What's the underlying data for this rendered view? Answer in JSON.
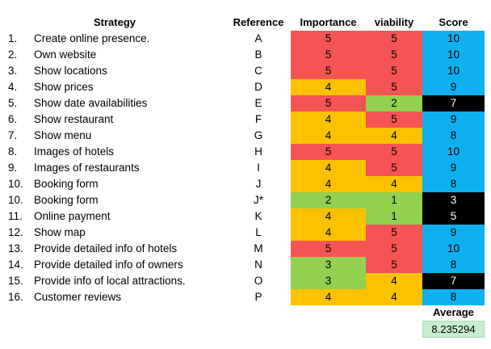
{
  "headers": {
    "strategy": "Strategy",
    "reference": "Reference",
    "importance": "Importance",
    "viability": "viability",
    "score": "Score"
  },
  "colors": {
    "red": "#f55454",
    "yellow": "#fcc200",
    "green": "#92d050",
    "blue": "#0fb0ef",
    "black": "#000000",
    "average_fill": "#c6efce"
  },
  "rows": [
    {
      "num": "1.",
      "strategy": "Create online presence.",
      "ref": "A",
      "importance": "5",
      "importance_color": "red",
      "viability": "5",
      "viability_color": "red",
      "score": "10",
      "score_color": "blue"
    },
    {
      "num": "2.",
      "strategy": "Own website",
      "ref": "B",
      "importance": "5",
      "importance_color": "red",
      "viability": "5",
      "viability_color": "red",
      "score": "10",
      "score_color": "blue"
    },
    {
      "num": "3.",
      "strategy": "Show locations",
      "ref": "C",
      "importance": "5",
      "importance_color": "red",
      "viability": "5",
      "viability_color": "red",
      "score": "10",
      "score_color": "blue"
    },
    {
      "num": "4.",
      "strategy": "Show prices",
      "ref": "D",
      "importance": "4",
      "importance_color": "yellow",
      "viability": "5",
      "viability_color": "red",
      "score": "9",
      "score_color": "blue"
    },
    {
      "num": "5.",
      "strategy": "Show date availabilities",
      "ref": "E",
      "importance": "5",
      "importance_color": "red",
      "viability": "2",
      "viability_color": "green",
      "score": "7",
      "score_color": "black"
    },
    {
      "num": "6.",
      "strategy": "Show restaurant",
      "ref": "F",
      "importance": "4",
      "importance_color": "yellow",
      "viability": "5",
      "viability_color": "red",
      "score": "9",
      "score_color": "blue"
    },
    {
      "num": "7.",
      "strategy": "Show menu",
      "ref": "G",
      "importance": "4",
      "importance_color": "yellow",
      "viability": "4",
      "viability_color": "yellow",
      "score": "8",
      "score_color": "blue"
    },
    {
      "num": "8.",
      "strategy": "Images of hotels",
      "ref": "H",
      "importance": "5",
      "importance_color": "red",
      "viability": "5",
      "viability_color": "red",
      "score": "10",
      "score_color": "blue"
    },
    {
      "num": "9.",
      "strategy": "Images of restaurants",
      "ref": "I",
      "importance": "4",
      "importance_color": "yellow",
      "viability": "5",
      "viability_color": "red",
      "score": "9",
      "score_color": "blue"
    },
    {
      "num": "10.",
      "strategy": "Booking form",
      "ref": "J",
      "importance": "4",
      "importance_color": "yellow",
      "viability": "4",
      "viability_color": "yellow",
      "score": "8",
      "score_color": "blue"
    },
    {
      "num": "10.",
      "strategy": "Booking form",
      "ref": "J*",
      "importance": "2",
      "importance_color": "green",
      "viability": "1",
      "viability_color": "green",
      "score": "3",
      "score_color": "black"
    },
    {
      "num": "11.",
      "strategy": "Online payment",
      "ref": "K",
      "importance": "4",
      "importance_color": "yellow",
      "viability": "1",
      "viability_color": "green",
      "score": "5",
      "score_color": "black"
    },
    {
      "num": "12.",
      "strategy": "Show map",
      "ref": "L",
      "importance": "4",
      "importance_color": "yellow",
      "viability": "5",
      "viability_color": "red",
      "score": "9",
      "score_color": "blue"
    },
    {
      "num": "13.",
      "strategy": "Provide detailed info of hotels",
      "ref": "M",
      "importance": "5",
      "importance_color": "red",
      "viability": "5",
      "viability_color": "red",
      "score": "10",
      "score_color": "blue"
    },
    {
      "num": "14.",
      "strategy": "Provide detailed info of owners",
      "ref": "N",
      "importance": "3",
      "importance_color": "green",
      "viability": "5",
      "viability_color": "red",
      "score": "8",
      "score_color": "blue"
    },
    {
      "num": "15.",
      "strategy": "Provide info of local attractions.",
      "ref": "O",
      "importance": "3",
      "importance_color": "green",
      "viability": "4",
      "viability_color": "yellow",
      "score": "7",
      "score_color": "black"
    },
    {
      "num": "16.",
      "strategy": "Customer reviews",
      "ref": "P",
      "importance": "4",
      "importance_color": "yellow",
      "viability": "4",
      "viability_color": "yellow",
      "score": "8",
      "score_color": "blue"
    }
  ],
  "average": {
    "label": "Average",
    "value": "8.235294"
  }
}
